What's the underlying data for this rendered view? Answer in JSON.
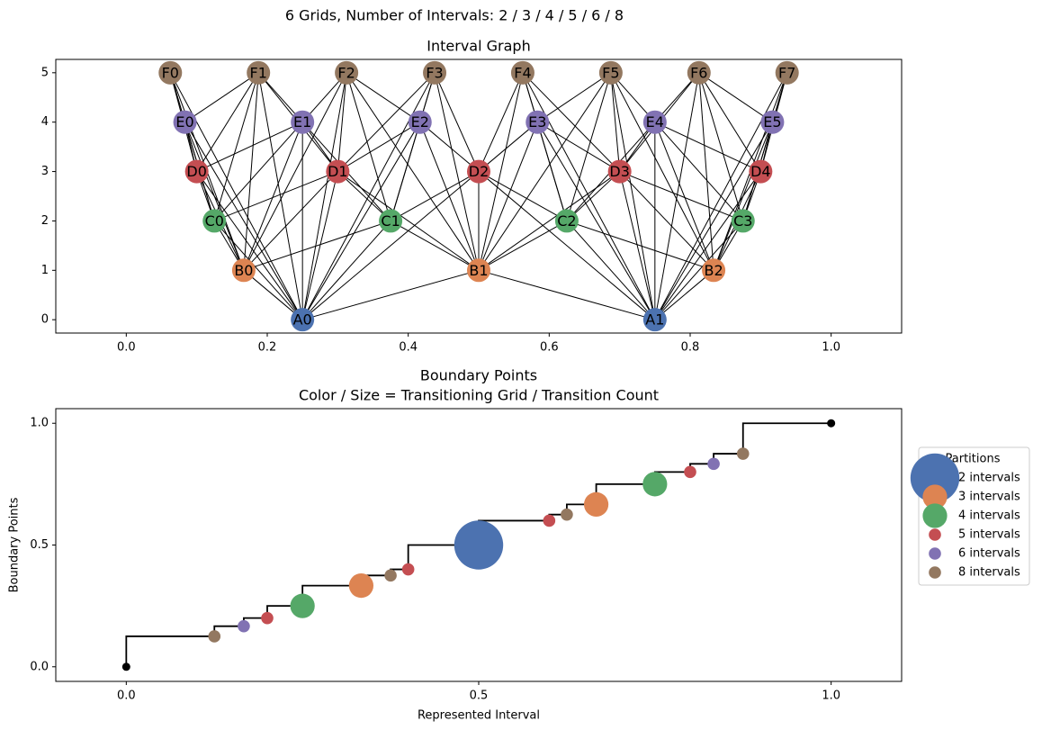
{
  "title": "6 Grids, Number of Intervals: 2 / 3 / 4 / 5 / 6 / 8",
  "chart_data": [
    {
      "type": "network",
      "title": "Interval Graph",
      "xlim": [
        -0.1,
        1.1
      ],
      "ylim": [
        -0.27,
        5.27
      ],
      "xticks": [
        {
          "value": 0,
          "label": "0.0"
        },
        0.2,
        0.4,
        0.6,
        0.8,
        {
          "value": 1,
          "label": "1.0"
        }
      ],
      "yticks": [
        0,
        1,
        2,
        3,
        4,
        5
      ],
      "nodes": [
        {
          "label": "A0",
          "x": 0.25,
          "y": 0,
          "color": "#4c72b0"
        },
        {
          "label": "A1",
          "x": 0.75,
          "y": 0,
          "color": "#4c72b0"
        },
        {
          "label": "B0",
          "x": 0.1667,
          "y": 1,
          "color": "#dd8452"
        },
        {
          "label": "B1",
          "x": 0.5,
          "y": 1,
          "color": "#dd8452"
        },
        {
          "label": "B2",
          "x": 0.8333,
          "y": 1,
          "color": "#dd8452"
        },
        {
          "label": "C0",
          "x": 0.125,
          "y": 2,
          "color": "#55a868"
        },
        {
          "label": "C1",
          "x": 0.375,
          "y": 2,
          "color": "#55a868"
        },
        {
          "label": "C2",
          "x": 0.625,
          "y": 2,
          "color": "#55a868"
        },
        {
          "label": "C3",
          "x": 0.875,
          "y": 2,
          "color": "#55a868"
        },
        {
          "label": "D0",
          "x": 0.1,
          "y": 3,
          "color": "#c44e52"
        },
        {
          "label": "D1",
          "x": 0.3,
          "y": 3,
          "color": "#c44e52"
        },
        {
          "label": "D2",
          "x": 0.5,
          "y": 3,
          "color": "#c44e52"
        },
        {
          "label": "D3",
          "x": 0.7,
          "y": 3,
          "color": "#c44e52"
        },
        {
          "label": "D4",
          "x": 0.9,
          "y": 3,
          "color": "#c44e52"
        },
        {
          "label": "E0",
          "x": 0.0833,
          "y": 4,
          "color": "#8172b3"
        },
        {
          "label": "E1",
          "x": 0.25,
          "y": 4,
          "color": "#8172b3"
        },
        {
          "label": "E2",
          "x": 0.4167,
          "y": 4,
          "color": "#8172b3"
        },
        {
          "label": "E3",
          "x": 0.5833,
          "y": 4,
          "color": "#8172b3"
        },
        {
          "label": "E4",
          "x": 0.75,
          "y": 4,
          "color": "#8172b3"
        },
        {
          "label": "E5",
          "x": 0.9167,
          "y": 4,
          "color": "#8172b3"
        },
        {
          "label": "F0",
          "x": 0.0625,
          "y": 5,
          "color": "#937860"
        },
        {
          "label": "F1",
          "x": 0.1875,
          "y": 5,
          "color": "#937860"
        },
        {
          "label": "F2",
          "x": 0.3125,
          "y": 5,
          "color": "#937860"
        },
        {
          "label": "F3",
          "x": 0.4375,
          "y": 5,
          "color": "#937860"
        },
        {
          "label": "F4",
          "x": 0.5625,
          "y": 5,
          "color": "#937860"
        },
        {
          "label": "F5",
          "x": 0.6875,
          "y": 5,
          "color": "#937860"
        },
        {
          "label": "F6",
          "x": 0.8125,
          "y": 5,
          "color": "#937860"
        },
        {
          "label": "F7",
          "x": 0.9375,
          "y": 5,
          "color": "#937860"
        }
      ],
      "edges": [
        [
          0,
          2
        ],
        [
          0,
          3
        ],
        [
          0,
          5
        ],
        [
          0,
          6
        ],
        [
          0,
          9
        ],
        [
          0,
          10
        ],
        [
          0,
          11
        ],
        [
          0,
          14
        ],
        [
          0,
          15
        ],
        [
          0,
          16
        ],
        [
          0,
          20
        ],
        [
          0,
          21
        ],
        [
          0,
          22
        ],
        [
          0,
          23
        ],
        [
          1,
          3
        ],
        [
          1,
          4
        ],
        [
          1,
          7
        ],
        [
          1,
          8
        ],
        [
          1,
          11
        ],
        [
          1,
          12
        ],
        [
          1,
          13
        ],
        [
          1,
          17
        ],
        [
          1,
          18
        ],
        [
          1,
          19
        ],
        [
          1,
          24
        ],
        [
          1,
          25
        ],
        [
          1,
          26
        ],
        [
          1,
          27
        ],
        [
          2,
          5
        ],
        [
          2,
          6
        ],
        [
          2,
          9
        ],
        [
          2,
          10
        ],
        [
          2,
          14
        ],
        [
          2,
          15
        ],
        [
          2,
          20
        ],
        [
          2,
          21
        ],
        [
          2,
          22
        ],
        [
          3,
          6
        ],
        [
          3,
          7
        ],
        [
          3,
          10
        ],
        [
          3,
          11
        ],
        [
          3,
          12
        ],
        [
          3,
          16
        ],
        [
          3,
          17
        ],
        [
          3,
          22
        ],
        [
          3,
          23
        ],
        [
          3,
          24
        ],
        [
          3,
          25
        ],
        [
          4,
          7
        ],
        [
          4,
          8
        ],
        [
          4,
          12
        ],
        [
          4,
          13
        ],
        [
          4,
          18
        ],
        [
          4,
          19
        ],
        [
          4,
          25
        ],
        [
          4,
          26
        ],
        [
          4,
          27
        ],
        [
          5,
          9
        ],
        [
          5,
          10
        ],
        [
          5,
          14
        ],
        [
          5,
          15
        ],
        [
          5,
          20
        ],
        [
          5,
          21
        ],
        [
          6,
          10
        ],
        [
          6,
          11
        ],
        [
          6,
          15
        ],
        [
          6,
          16
        ],
        [
          6,
          22
        ],
        [
          6,
          23
        ],
        [
          7,
          11
        ],
        [
          7,
          12
        ],
        [
          7,
          17
        ],
        [
          7,
          18
        ],
        [
          7,
          24
        ],
        [
          7,
          25
        ],
        [
          8,
          12
        ],
        [
          8,
          13
        ],
        [
          8,
          18
        ],
        [
          8,
          19
        ],
        [
          8,
          26
        ],
        [
          8,
          27
        ],
        [
          9,
          14
        ],
        [
          9,
          15
        ],
        [
          9,
          20
        ],
        [
          9,
          21
        ],
        [
          10,
          15
        ],
        [
          10,
          16
        ],
        [
          10,
          21
        ],
        [
          10,
          22
        ],
        [
          10,
          23
        ],
        [
          11,
          16
        ],
        [
          11,
          17
        ],
        [
          11,
          23
        ],
        [
          11,
          24
        ],
        [
          12,
          17
        ],
        [
          12,
          18
        ],
        [
          12,
          24
        ],
        [
          12,
          25
        ],
        [
          12,
          26
        ],
        [
          13,
          18
        ],
        [
          13,
          19
        ],
        [
          13,
          26
        ],
        [
          13,
          27
        ],
        [
          14,
          20
        ],
        [
          14,
          21
        ],
        [
          15,
          21
        ],
        [
          15,
          22
        ],
        [
          16,
          22
        ],
        [
          16,
          23
        ],
        [
          17,
          24
        ],
        [
          17,
          25
        ],
        [
          18,
          25
        ],
        [
          18,
          26
        ],
        [
          19,
          26
        ],
        [
          19,
          27
        ]
      ]
    },
    {
      "type": "step",
      "title": "Boundary Points",
      "subtitle": "Color / Size = Transitioning Grid / Transition Count",
      "x_label": "Represented Interval",
      "y_label": "Boundary Points",
      "xlim": [
        -0.1,
        1.1
      ],
      "ylim": [
        -0.06,
        1.06
      ],
      "xticks": [
        {
          "value": 0,
          "label": "0.0"
        },
        0.5,
        {
          "value": 1,
          "label": "1.0"
        }
      ],
      "yticks": [
        {
          "value": 0,
          "label": "0.0"
        },
        0.5,
        {
          "value": 1,
          "label": "1.0"
        }
      ],
      "line": {
        "color": "#000000",
        "x": [
          0,
          0.125,
          0.1667,
          0.2,
          0.25,
          0.3333,
          0.375,
          0.4,
          0.5,
          0.6,
          0.625,
          0.6667,
          0.75,
          0.8,
          0.8333,
          0.875,
          1
        ],
        "values": [
          0,
          0.125,
          0.1667,
          0.2,
          0.25,
          0.3333,
          0.375,
          0.4,
          0.5,
          0.6,
          0.625,
          0.6667,
          0.75,
          0.8,
          0.8333,
          0.875,
          1
        ]
      },
      "legend_title": "Partitions",
      "series": [
        {
          "name": "2 intervals",
          "color": "#4c72b0",
          "x": [
            0.5
          ],
          "values": [
            0.5
          ],
          "sizes": [
            4
          ]
        },
        {
          "name": "3 intervals",
          "color": "#dd8452",
          "x": [
            0.3333,
            0.6667
          ],
          "values": [
            0.3333,
            0.6667
          ],
          "sizes": [
            2,
            2
          ]
        },
        {
          "name": "4 intervals",
          "color": "#55a868",
          "x": [
            0.25,
            0.75
          ],
          "values": [
            0.25,
            0.75
          ],
          "sizes": [
            2,
            2
          ]
        },
        {
          "name": "5 intervals",
          "color": "#c44e52",
          "x": [
            0.2,
            0.4,
            0.6,
            0.8
          ],
          "values": [
            0.2,
            0.4,
            0.6,
            0.8
          ],
          "sizes": [
            1,
            1,
            1,
            1
          ]
        },
        {
          "name": "6 intervals",
          "color": "#8172b3",
          "x": [
            0.1667,
            0.8333
          ],
          "values": [
            0.1667,
            0.8333
          ],
          "sizes": [
            1,
            1
          ]
        },
        {
          "name": "8 intervals",
          "color": "#937860",
          "x": [
            0.125,
            0.375,
            0.625,
            0.875
          ],
          "values": [
            0.125,
            0.375,
            0.625,
            0.875
          ],
          "sizes": [
            1,
            1,
            1,
            1
          ]
        }
      ]
    }
  ]
}
